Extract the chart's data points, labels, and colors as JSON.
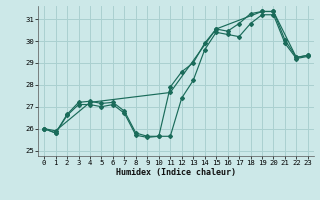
{
  "title": "",
  "xlabel": "Humidex (Indice chaleur)",
  "bg_color": "#cce8e8",
  "grid_color": "#aad0d0",
  "line_color": "#1a6b5a",
  "xlim": [
    -0.5,
    23.5
  ],
  "ylim": [
    24.75,
    31.6
  ],
  "yticks": [
    25,
    26,
    27,
    28,
    29,
    30,
    31
  ],
  "xticks": [
    0,
    1,
    2,
    3,
    4,
    5,
    6,
    7,
    8,
    9,
    10,
    11,
    12,
    13,
    14,
    15,
    16,
    17,
    18,
    19,
    20,
    21,
    22,
    23
  ],
  "series1_x": [
    0,
    1,
    2,
    3,
    4,
    5,
    6,
    7,
    8,
    9,
    10,
    11,
    12,
    13,
    14,
    15,
    16,
    17,
    18,
    19,
    20,
    21,
    22,
    23
  ],
  "series1_y": [
    26.0,
    25.8,
    26.6,
    27.1,
    27.1,
    27.0,
    27.1,
    26.7,
    25.7,
    25.6,
    25.65,
    25.65,
    27.4,
    28.2,
    29.6,
    30.4,
    30.3,
    30.2,
    30.8,
    31.2,
    31.2,
    29.9,
    29.2,
    29.3
  ],
  "series2_x": [
    0,
    1,
    2,
    3,
    4,
    5,
    6,
    7,
    8,
    9,
    10,
    11,
    12,
    13,
    14,
    15,
    16,
    17,
    18,
    19,
    20,
    21,
    22,
    23
  ],
  "series2_y": [
    26.0,
    25.8,
    26.65,
    27.2,
    27.25,
    27.15,
    27.2,
    26.8,
    25.8,
    25.65,
    25.65,
    27.9,
    28.6,
    29.0,
    29.9,
    30.55,
    30.45,
    30.8,
    31.25,
    31.35,
    31.35,
    30.05,
    29.25,
    29.35
  ],
  "series3_x": [
    0,
    1,
    4,
    11,
    15,
    19,
    20,
    22,
    23
  ],
  "series3_y": [
    26.0,
    25.9,
    27.2,
    27.65,
    30.55,
    31.35,
    31.35,
    29.25,
    29.35
  ]
}
